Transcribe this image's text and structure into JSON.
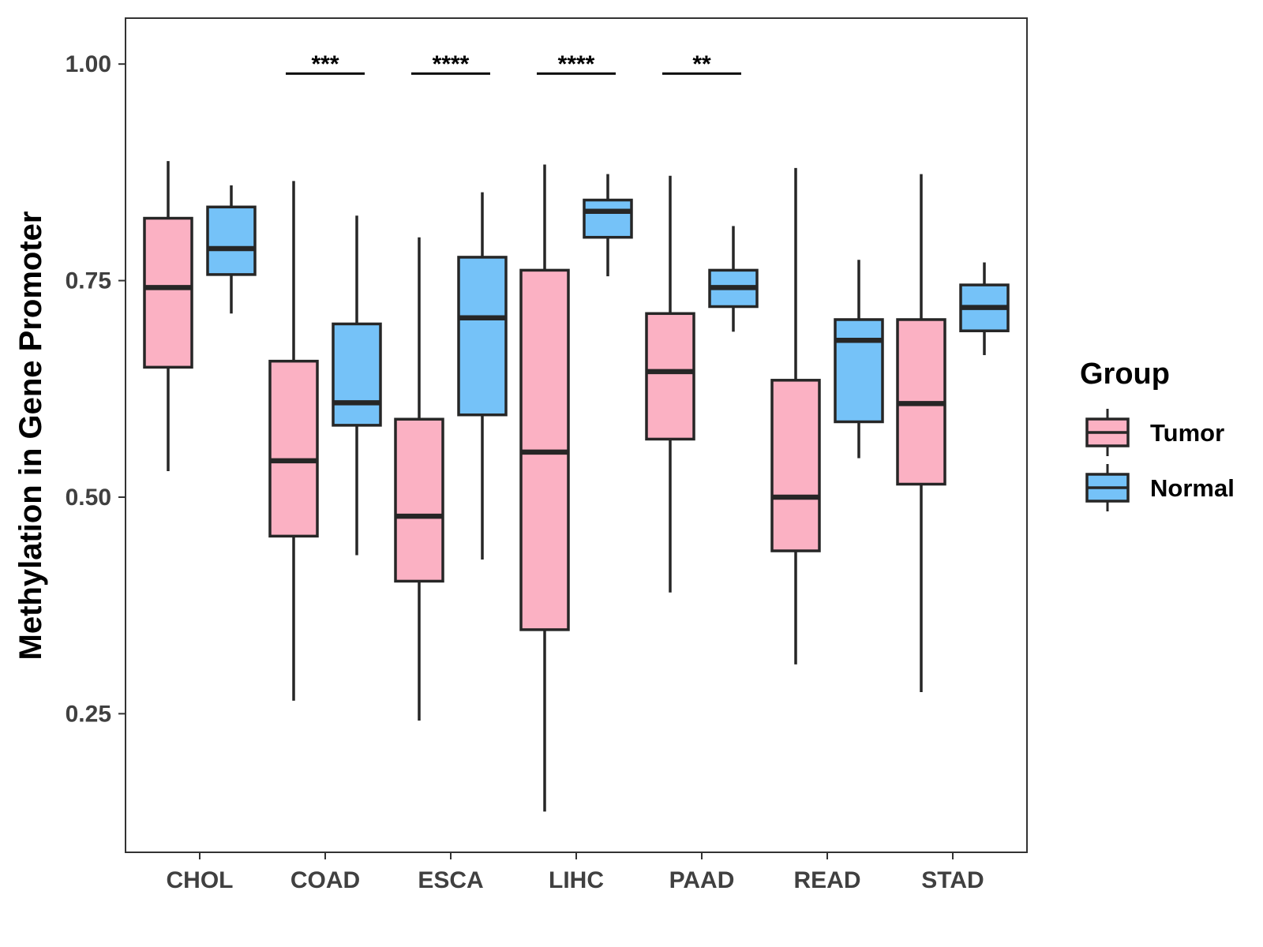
{
  "chart_data": {
    "type": "boxplot",
    "title": "",
    "xlabel": "",
    "ylabel": "Methylation in Gene Promoter",
    "ylim": [
      0.09,
      1.053
    ],
    "yticks": [
      0.25,
      0.5,
      0.75,
      1.0
    ],
    "ytick_labels": [
      "0.25",
      "0.50",
      "0.75",
      "1.00"
    ],
    "categories": [
      "CHOL",
      "COAD",
      "ESCA",
      "LIHC",
      "PAAD",
      "READ",
      "STAD"
    ],
    "legend": {
      "title": "Group",
      "position": "right",
      "entries": [
        {
          "name": "Tumor",
          "color": "#FBB1C3"
        },
        {
          "name": "Normal",
          "color": "#75C2F8"
        }
      ]
    },
    "series": [
      {
        "name": "Tumor",
        "color": "#FBB1C3",
        "boxes": [
          {
            "category": "CHOL",
            "min": 0.53,
            "q1": 0.65,
            "median": 0.742,
            "q3": 0.822,
            "max": 0.888
          },
          {
            "category": "COAD",
            "min": 0.265,
            "q1": 0.455,
            "median": 0.542,
            "q3": 0.657,
            "max": 0.865
          },
          {
            "category": "ESCA",
            "min": 0.242,
            "q1": 0.403,
            "median": 0.478,
            "q3": 0.59,
            "max": 0.8
          },
          {
            "category": "LIHC",
            "min": 0.137,
            "q1": 0.347,
            "median": 0.552,
            "q3": 0.762,
            "max": 0.884
          },
          {
            "category": "PAAD",
            "min": 0.39,
            "q1": 0.567,
            "median": 0.645,
            "q3": 0.712,
            "max": 0.871
          },
          {
            "category": "READ",
            "min": 0.307,
            "q1": 0.438,
            "median": 0.5,
            "q3": 0.635,
            "max": 0.88
          },
          {
            "category": "STAD",
            "min": 0.275,
            "q1": 0.515,
            "median": 0.608,
            "q3": 0.705,
            "max": 0.873
          }
        ]
      },
      {
        "name": "Normal",
        "color": "#75C2F8",
        "boxes": [
          {
            "category": "CHOL",
            "min": 0.712,
            "q1": 0.757,
            "median": 0.787,
            "q3": 0.835,
            "max": 0.86
          },
          {
            "category": "COAD",
            "min": 0.433,
            "q1": 0.583,
            "median": 0.609,
            "q3": 0.7,
            "max": 0.825
          },
          {
            "category": "ESCA",
            "min": 0.428,
            "q1": 0.595,
            "median": 0.707,
            "q3": 0.777,
            "max": 0.852
          },
          {
            "category": "LIHC",
            "min": 0.755,
            "q1": 0.8,
            "median": 0.83,
            "q3": 0.843,
            "max": 0.873
          },
          {
            "category": "PAAD",
            "min": 0.691,
            "q1": 0.72,
            "median": 0.742,
            "q3": 0.762,
            "max": 0.813
          },
          {
            "category": "READ",
            "min": 0.545,
            "q1": 0.587,
            "median": 0.681,
            "q3": 0.705,
            "max": 0.774
          },
          {
            "category": "STAD",
            "min": 0.664,
            "q1": 0.692,
            "median": 0.719,
            "q3": 0.745,
            "max": 0.771
          }
        ]
      }
    ],
    "annotations": [
      {
        "category": "COAD",
        "label": "***",
        "y": 0.989
      },
      {
        "category": "ESCA",
        "label": "****",
        "y": 0.989
      },
      {
        "category": "LIHC",
        "label": "****",
        "y": 0.989
      },
      {
        "category": "PAAD",
        "label": "**",
        "y": 0.989
      }
    ]
  }
}
